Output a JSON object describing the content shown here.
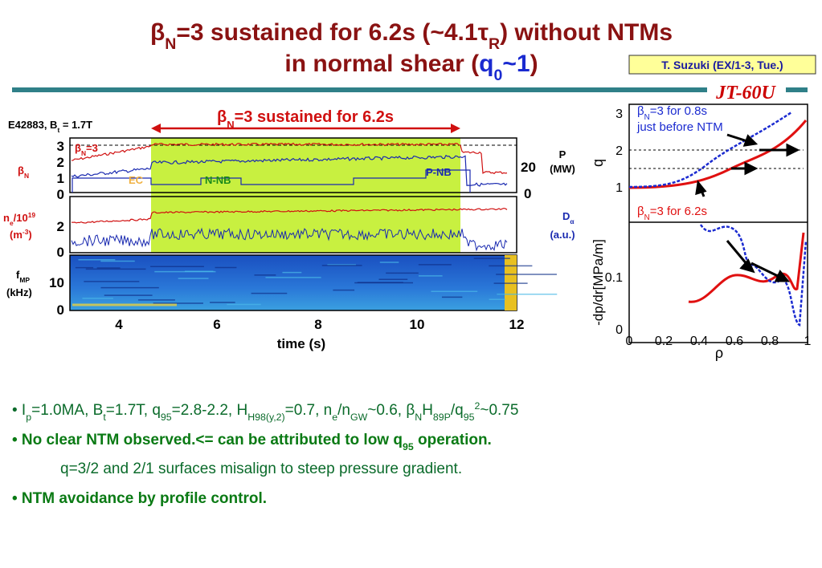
{
  "title": {
    "line1": [
      "β",
      "N",
      "=3 sustained for 6.2s (~4.1",
      "τ",
      "R",
      ") without NTMs"
    ],
    "line2": [
      "in normal shear (",
      "q",
      "0",
      "~1",
      ")"
    ]
  },
  "badge": "T. Suzuki (EX/1-3, Tue.)",
  "logo": "JT-60U",
  "left_figure": {
    "shot": [
      "E42883, B",
      "t",
      " = 1.7T"
    ],
    "banner": [
      "β",
      "N",
      "=3 sustained for 6.2s"
    ],
    "panel1": {
      "ylabel": [
        "β",
        "N"
      ],
      "inner_label": [
        "β",
        "N",
        "=3"
      ],
      "yticks": [
        "3",
        "2",
        "1",
        "0"
      ],
      "right_label": [
        "P",
        "(MW)"
      ],
      "right_ticks": [
        "20",
        "0"
      ],
      "labels": [
        "EC",
        "N-NB",
        "P-NB"
      ]
    },
    "panel2": {
      "ylabel": [
        "n",
        "e",
        "/10",
        "19"
      ],
      "ylabel_unit": [
        "(m",
        "-3",
        ")"
      ],
      "yticks": [
        "2",
        "0"
      ],
      "right_label": [
        "D",
        "α"
      ],
      "right_unit": "(a.u.)"
    },
    "panel3": {
      "ylabel": [
        "f",
        "MP"
      ],
      "ylabel_unit": "(kHz)",
      "yticks": [
        "10",
        "0"
      ]
    },
    "xticks": [
      "4",
      "6",
      "8",
      "10",
      "12"
    ],
    "xlabel": "time (s)"
  },
  "right_figure": {
    "annotation_blue": [
      "β",
      "N",
      "=3 for 0.8s"
    ],
    "annotation_blue_2": "just before NTM",
    "annotation_red": [
      "β",
      "N",
      "=3 for 6.2s"
    ],
    "q_label": "q",
    "q_ticks": [
      "3",
      "2",
      "1"
    ],
    "dp_label": "-dp/dr[MPa/m]",
    "dp_ticks": [
      "0.1",
      "0"
    ],
    "xticks": [
      "0",
      "0.2",
      "0.4",
      "0.6",
      "0.8",
      "1"
    ],
    "xlabel": "ρ"
  },
  "bullets": [
    [
      "•",
      " I",
      "p",
      "=1.0MA, B",
      "t",
      "=1.7T, q",
      "95",
      "=2.8-2.2, H",
      "H98(y,2)",
      "=0.7, n",
      "e",
      "/n",
      "GW",
      "~0.6, ",
      "β",
      "N",
      "H",
      "89P",
      "/q",
      "95",
      "2",
      "~0.75"
    ],
    [
      "•",
      " No clear NTM observed.<= can be attributed to low q",
      "95",
      " operation."
    ],
    "q=3/2 and 2/1 surfaces misalign to steep pressure gradient.",
    [
      "•",
      " NTM avoidance by profile control."
    ]
  ]
}
